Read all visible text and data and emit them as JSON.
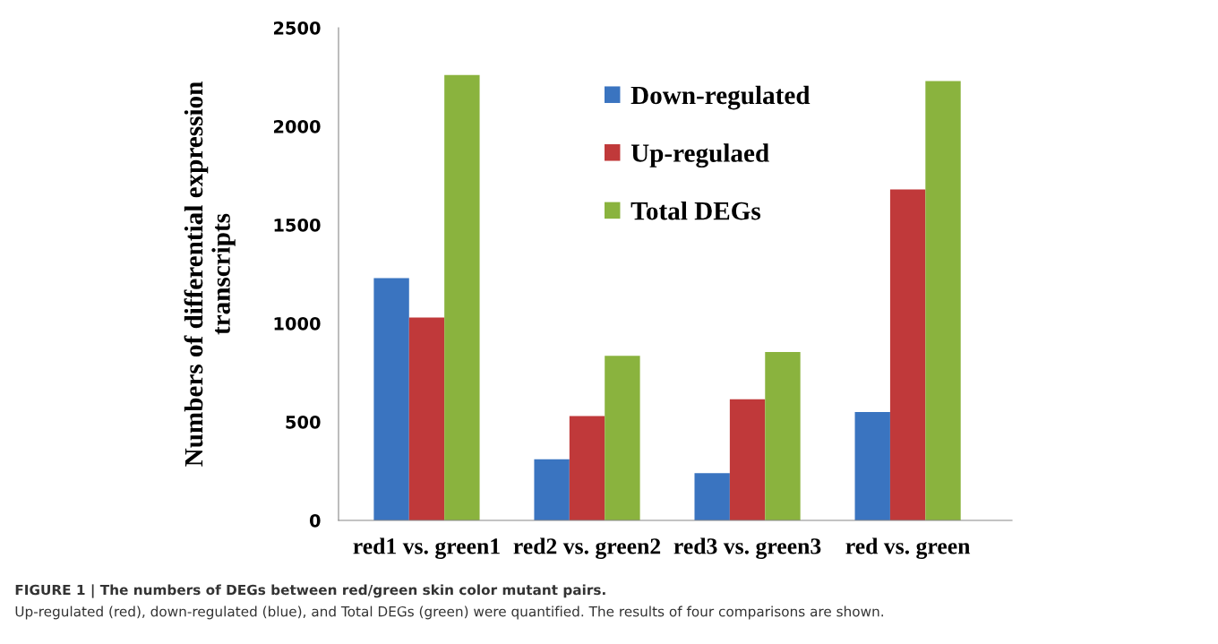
{
  "chart_data": {
    "type": "bar",
    "title": "FIGURE 1 | The numbers of DEGs between red/green skin color mutant pairs.",
    "ylabel": "Numbers of differential expression\ntranscripts",
    "categories": [
      "red1 vs. green1",
      "red2 vs. green2",
      "red3 vs. green3",
      "red vs. green"
    ],
    "series": [
      {
        "name": "Down-regulated",
        "color": "#3a74c0",
        "values": [
          1230,
          310,
          240,
          550
        ]
      },
      {
        "name": "Up-regulaed",
        "color": "#c0393a",
        "values": [
          1030,
          530,
          615,
          1680
        ]
      },
      {
        "name": "Total DEGs",
        "color": "#8ab33e",
        "values": [
          2260,
          835,
          855,
          2230
        ]
      }
    ],
    "ylim": [
      0,
      2500
    ],
    "yticks": [
      0,
      500,
      1000,
      1500,
      2000,
      2500
    ],
    "grid": false,
    "legend": "top",
    "annotations": [
      "Up-regulated (red), down-regulated (blue), and Total DEGs (green) were quantified. The results of four comparisons are shown."
    ]
  }
}
